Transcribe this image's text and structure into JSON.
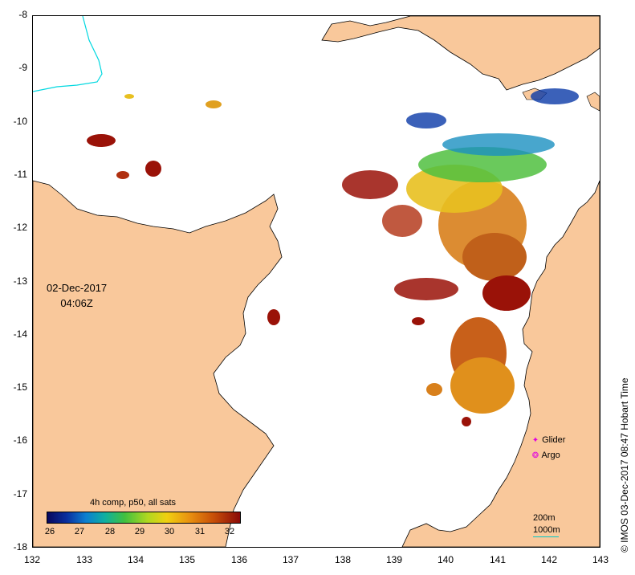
{
  "map": {
    "lon_ticks": [
      "132",
      "133",
      "134",
      "135",
      "136",
      "137",
      "138",
      "139",
      "140",
      "141",
      "142",
      "143"
    ],
    "lat_ticks": [
      "-8",
      "-9",
      "-10",
      "-11",
      "-12",
      "-13",
      "-14",
      "-15",
      "-16",
      "-17",
      "-18"
    ],
    "date": "02-Dec-2017",
    "time": "04:06Z"
  },
  "legend": {
    "title": "4h comp, p50, all sats",
    "ticks": [
      "26",
      "27",
      "28",
      "29",
      "30",
      "31",
      "32"
    ],
    "glider_label": "Glider",
    "argo_label": "Argo",
    "glider_symbol": "✦",
    "argo_symbol": "❂",
    "scale_200": "200m",
    "scale_1000": "1000m"
  },
  "credit": "© IMOS 03-Dec-2017 08:47 Hobart Time",
  "colors": {
    "land": "#f9c89b",
    "coast": "#000000",
    "river": "#00d8e0",
    "sst_hot": "#9a1208",
    "sst_warm": "#d8801c",
    "sst_mid": "#e8c020",
    "sst_green": "#50c040",
    "sst_blue": "#0a3aa8"
  }
}
